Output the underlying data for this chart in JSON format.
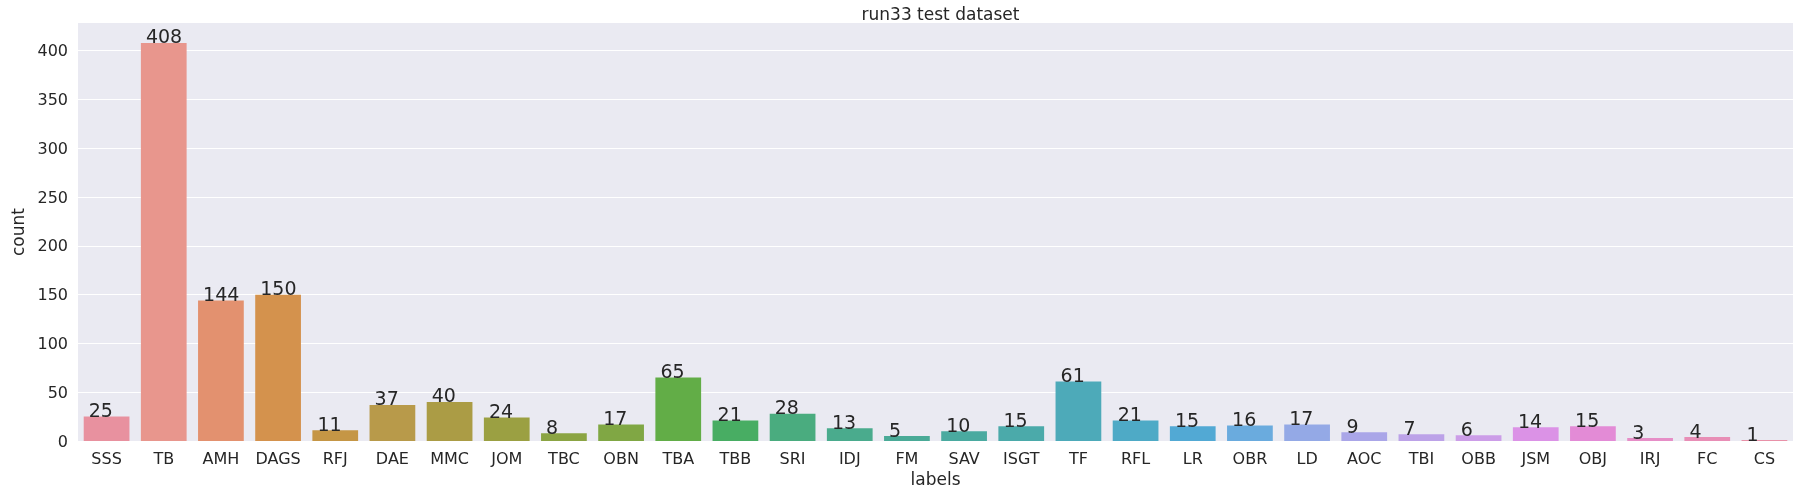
{
  "chart_data": {
    "type": "bar",
    "title": "run33 test dataset",
    "xlabel": "labels",
    "ylabel": "count",
    "categories": [
      "SSS",
      "TB",
      "AMH",
      "DAGS",
      "RFJ",
      "DAE",
      "MMC",
      "JOM",
      "TBC",
      "OBN",
      "TBA",
      "TBB",
      "SRI",
      "IDJ",
      "FM",
      "SAV",
      "ISGT",
      "TF",
      "RFL",
      "LR",
      "OBR",
      "LD",
      "AOC",
      "TBI",
      "OBB",
      "JSM",
      "OBJ",
      "IRJ",
      "FC",
      "CS"
    ],
    "values": [
      25,
      408,
      144,
      150,
      11,
      37,
      40,
      24,
      8,
      17,
      65,
      21,
      28,
      13,
      5,
      10,
      15,
      61,
      21,
      15,
      16,
      17,
      9,
      7,
      6,
      14,
      15,
      3,
      4,
      1
    ],
    "colors": [
      "#e8919f",
      "#e8968d",
      "#e3916f",
      "#d4924d",
      "#c59645",
      "#b89a4a",
      "#ab9c45",
      "#9ba042",
      "#8ba443",
      "#80a744",
      "#62ad47",
      "#48ad63",
      "#4aac7f",
      "#4aab8d",
      "#4aaa97",
      "#4aaaa0",
      "#4baaaa",
      "#4daab9",
      "#4eaac6",
      "#52a9d4",
      "#6aabde",
      "#94a9e6",
      "#aaa6e8",
      "#bca2e8",
      "#cc9de8",
      "#db92e6",
      "#e38bd6",
      "#e68ec7",
      "#e88eb6",
      "#e891a8"
    ],
    "ylim": [
      0,
      428.4
    ],
    "yticks": [
      0,
      50,
      100,
      150,
      200,
      250,
      300,
      350,
      400
    ],
    "grid": "y",
    "data_labels": true
  }
}
